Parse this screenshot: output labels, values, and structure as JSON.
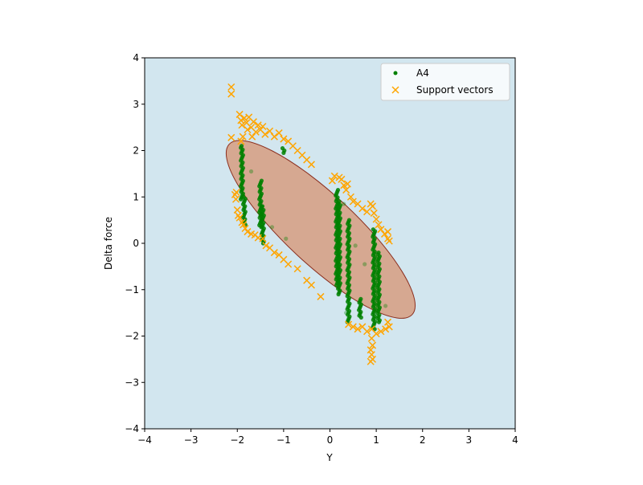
{
  "chart_data": {
    "type": "scatter",
    "xlabel": "Y",
    "ylabel": "Delta force",
    "xlim": [
      -4,
      4
    ],
    "ylim": [
      -4,
      4
    ],
    "x_ticks": [
      -4,
      -3,
      -2,
      -1,
      0,
      1,
      2,
      3,
      4
    ],
    "y_ticks": [
      -4,
      -3,
      -2,
      -1,
      0,
      1,
      2,
      3,
      4
    ],
    "x_tick_labels": [
      "−4",
      "−3",
      "−2",
      "−1",
      "0",
      "1",
      "2",
      "3",
      "4"
    ],
    "y_tick_labels": [
      "−4",
      "−3",
      "−2",
      "−1",
      "0",
      "1",
      "2",
      "3",
      "4"
    ],
    "grid": false,
    "background_color": "#d2e6ef",
    "decision_region": {
      "shape": "ellipse",
      "center": [
        -0.2,
        0.3
      ],
      "semi_axes": [
        2.7,
        0.75
      ],
      "rotation_deg": -43,
      "fill_color": "#d6a891",
      "edge_color": "#8b2f1f"
    },
    "legend": {
      "position": "top-right",
      "entries": [
        {
          "label": "A4",
          "marker": "dot",
          "color": "#008000"
        },
        {
          "label": "Support vectors",
          "marker": "x",
          "color": "#ffa500"
        }
      ]
    },
    "series": [
      {
        "name": "A4",
        "marker": "dot",
        "color": "#008000",
        "columns": [
          {
            "x": -1.9,
            "y0": 0.95,
            "y1": 2.1
          },
          {
            "x": -1.85,
            "y0": 0.4,
            "y1": 1.0
          },
          {
            "x": -1.5,
            "y0": 0.35,
            "y1": 1.35
          },
          {
            "x": -1.45,
            "y0": 0.0,
            "y1": 0.8
          },
          {
            "x": -1.0,
            "y0": 1.95,
            "y1": 2.05
          },
          {
            "x": 0.15,
            "y0": -0.9,
            "y1": 1.15
          },
          {
            "x": 0.2,
            "y0": -1.1,
            "y1": 0.9
          },
          {
            "x": 0.4,
            "y0": -1.7,
            "y1": 0.5
          },
          {
            "x": 0.65,
            "y0": -1.6,
            "y1": -1.2
          },
          {
            "x": 0.95,
            "y0": -1.85,
            "y1": 0.3
          },
          {
            "x": 1.05,
            "y0": -1.7,
            "y1": -0.2
          }
        ],
        "points": [
          [
            -1.25,
            0.35
          ],
          [
            -0.95,
            0.1
          ],
          [
            0.3,
            0.85
          ],
          [
            0.55,
            -0.05
          ],
          [
            0.75,
            -0.45
          ],
          [
            1.2,
            -1.35
          ],
          [
            0.35,
            -1.5
          ],
          [
            -1.7,
            1.55
          ]
        ]
      },
      {
        "name": "Support vectors",
        "marker": "x",
        "color": "#ffa500",
        "points": [
          [
            -2.13,
            3.37
          ],
          [
            -2.13,
            3.22
          ],
          [
            -2.13,
            2.28
          ],
          [
            -2.05,
            1.05
          ],
          [
            -2.02,
            1.1
          ],
          [
            -2.03,
            0.95
          ],
          [
            -2.0,
            0.72
          ],
          [
            -1.98,
            0.6
          ],
          [
            -1.95,
            0.55
          ],
          [
            -1.9,
            0.45
          ],
          [
            -1.87,
            0.4
          ],
          [
            -1.83,
            0.32
          ],
          [
            -1.78,
            0.25
          ],
          [
            -1.7,
            0.2
          ],
          [
            -1.62,
            0.18
          ],
          [
            -1.55,
            0.12
          ],
          [
            -1.45,
            0.1
          ],
          [
            -1.38,
            -0.05
          ],
          [
            -1.3,
            -0.1
          ],
          [
            -1.2,
            -0.2
          ],
          [
            -1.1,
            -0.25
          ],
          [
            -1.0,
            -0.35
          ],
          [
            -0.9,
            -0.45
          ],
          [
            -0.7,
            -0.55
          ],
          [
            -0.5,
            -0.8
          ],
          [
            -0.4,
            -0.9
          ],
          [
            -0.2,
            -1.15
          ],
          [
            -1.95,
            2.78
          ],
          [
            -1.92,
            2.65
          ],
          [
            -1.9,
            2.55
          ],
          [
            -1.85,
            2.7
          ],
          [
            -1.8,
            2.6
          ],
          [
            -1.78,
            2.45
          ],
          [
            -1.75,
            2.72
          ],
          [
            -1.7,
            2.5
          ],
          [
            -1.65,
            2.62
          ],
          [
            -1.6,
            2.4
          ],
          [
            -1.55,
            2.55
          ],
          [
            -1.5,
            2.45
          ],
          [
            -1.45,
            2.52
          ],
          [
            -1.4,
            2.35
          ],
          [
            -1.3,
            2.42
          ],
          [
            -1.2,
            2.3
          ],
          [
            -1.1,
            2.38
          ],
          [
            -1.0,
            2.25
          ],
          [
            -0.9,
            2.2
          ],
          [
            -0.8,
            2.1
          ],
          [
            -0.7,
            2.0
          ],
          [
            -0.6,
            1.9
          ],
          [
            -0.5,
            1.8
          ],
          [
            -0.4,
            1.7
          ],
          [
            -1.88,
            2.3
          ],
          [
            -1.92,
            2.2
          ],
          [
            -1.68,
            2.3
          ],
          [
            0.05,
            1.35
          ],
          [
            0.1,
            1.45
          ],
          [
            0.2,
            1.42
          ],
          [
            0.25,
            1.38
          ],
          [
            0.3,
            1.25
          ],
          [
            0.38,
            1.28
          ],
          [
            0.35,
            1.15
          ],
          [
            0.45,
            1.0
          ],
          [
            0.5,
            0.9
          ],
          [
            0.6,
            0.85
          ],
          [
            0.7,
            0.75
          ],
          [
            0.8,
            0.68
          ],
          [
            0.88,
            0.85
          ],
          [
            0.92,
            0.8
          ],
          [
            0.95,
            0.65
          ],
          [
            1.0,
            0.52
          ],
          [
            1.05,
            0.4
          ],
          [
            1.1,
            0.3
          ],
          [
            1.18,
            0.2
          ],
          [
            1.25,
            0.25
          ],
          [
            1.25,
            0.1
          ],
          [
            1.28,
            0.05
          ],
          [
            0.4,
            -1.75
          ],
          [
            0.5,
            -1.8
          ],
          [
            0.6,
            -1.85
          ],
          [
            0.7,
            -1.8
          ],
          [
            0.8,
            -1.9
          ],
          [
            0.9,
            -1.85
          ],
          [
            1.0,
            -1.95
          ],
          [
            1.1,
            -1.9
          ],
          [
            1.2,
            -1.85
          ],
          [
            1.25,
            -1.7
          ],
          [
            1.28,
            -1.8
          ],
          [
            0.9,
            -2.05
          ],
          [
            0.92,
            -2.2
          ],
          [
            0.88,
            -2.3
          ],
          [
            0.9,
            -2.4
          ],
          [
            0.92,
            -2.5
          ],
          [
            0.88,
            -2.55
          ]
        ]
      }
    ]
  }
}
